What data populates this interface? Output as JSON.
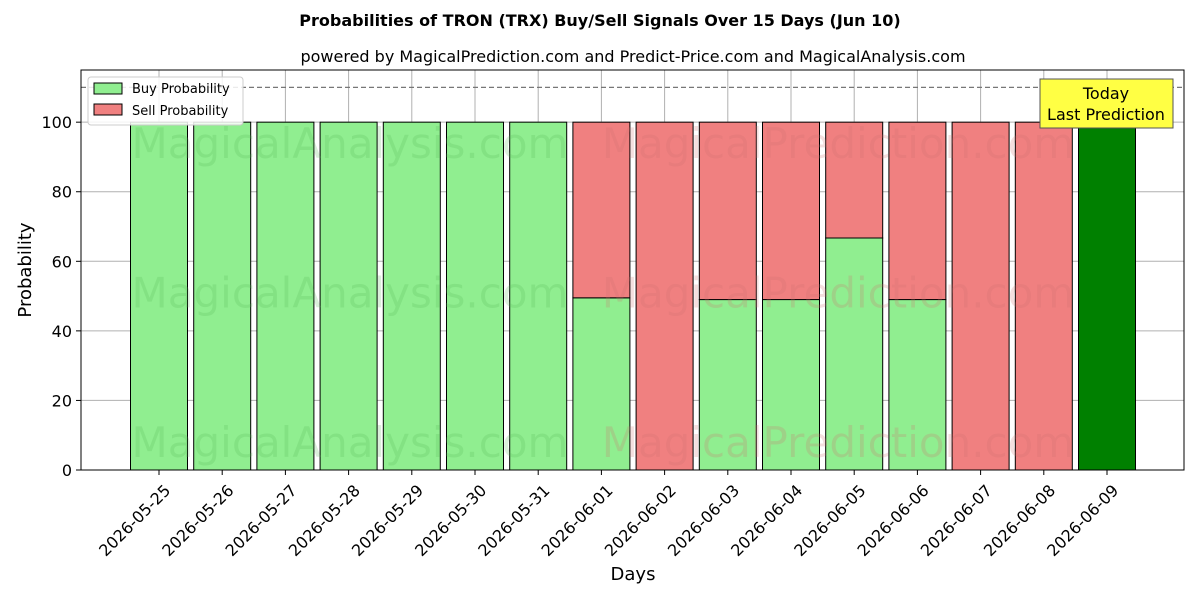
{
  "chart_data": {
    "type": "bar",
    "stacked": true,
    "title": "Probabilities of TRON (TRX) Buy/Sell Signals Over 15 Days (Jun 10)",
    "subtitle": "powered by MagicalPrediction.com and Predict-Price.com and MagicalAnalysis.com",
    "xlabel": "Days",
    "ylabel": "Probability",
    "ylim": [
      0,
      115
    ],
    "yticks": [
      0,
      20,
      40,
      60,
      80,
      100
    ],
    "reference_line": 110,
    "grid": true,
    "legend_position": "top-left",
    "categories": [
      "2026-05-25",
      "2026-05-26",
      "2026-05-27",
      "2026-05-28",
      "2026-05-29",
      "2026-05-30",
      "2026-05-31",
      "2026-06-01",
      "2026-06-02",
      "2026-06-03",
      "2026-06-04",
      "2026-06-05",
      "2026-06-06",
      "2026-06-07",
      "2026-06-08",
      "2026-06-09"
    ],
    "series": [
      {
        "name": "Buy Probability",
        "color": "#90ee90",
        "values": [
          100,
          100,
          100,
          100,
          100,
          100,
          100,
          49.5,
          0,
          49,
          49,
          66.7,
          49,
          0,
          0,
          100
        ]
      },
      {
        "name": "Sell Probability",
        "color": "#f08080",
        "values": [
          0,
          0,
          0,
          0,
          0,
          0,
          0,
          50.5,
          100,
          51,
          51,
          33.3,
          51,
          100,
          100,
          0
        ]
      }
    ],
    "highlight": {
      "index": 15,
      "color": "#008000"
    },
    "annotation": {
      "line1": "Today",
      "line2": "Last Prediction",
      "bg": "#ffff44"
    },
    "watermarks": [
      "MagicalAnalysis.com",
      "MagicalPrediction.com"
    ]
  }
}
